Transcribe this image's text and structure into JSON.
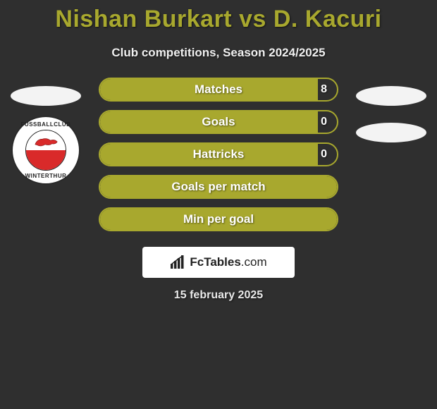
{
  "title": "Nishan Burkart vs D. Kacuri",
  "subtitle": "Club competitions, Season 2024/2025",
  "date": "15 february 2025",
  "brand": {
    "name": "FcTables",
    "domain": ".com"
  },
  "left_player": {
    "team_badge": {
      "top_text": "FUSSBALLCLUB",
      "bottom_text": "WINTERTHUR",
      "colors": {
        "ring": "#ffffff",
        "border": "#222222",
        "upper": "#ffffff",
        "lower": "#d92a2a"
      }
    }
  },
  "right_player": {},
  "stat_colors": {
    "border": "#a8a82e",
    "fill": "#a8a82e",
    "text": "#ffffff"
  },
  "stats": [
    {
      "label": "Matches",
      "value": "8",
      "fill_pct": 92,
      "show_value": true
    },
    {
      "label": "Goals",
      "value": "0",
      "fill_pct": 92,
      "show_value": true
    },
    {
      "label": "Hattricks",
      "value": "0",
      "fill_pct": 92,
      "show_value": true
    },
    {
      "label": "Goals per match",
      "value": "",
      "fill_pct": 100,
      "show_value": false
    },
    {
      "label": "Min per goal",
      "value": "",
      "fill_pct": 100,
      "show_value": false
    }
  ]
}
